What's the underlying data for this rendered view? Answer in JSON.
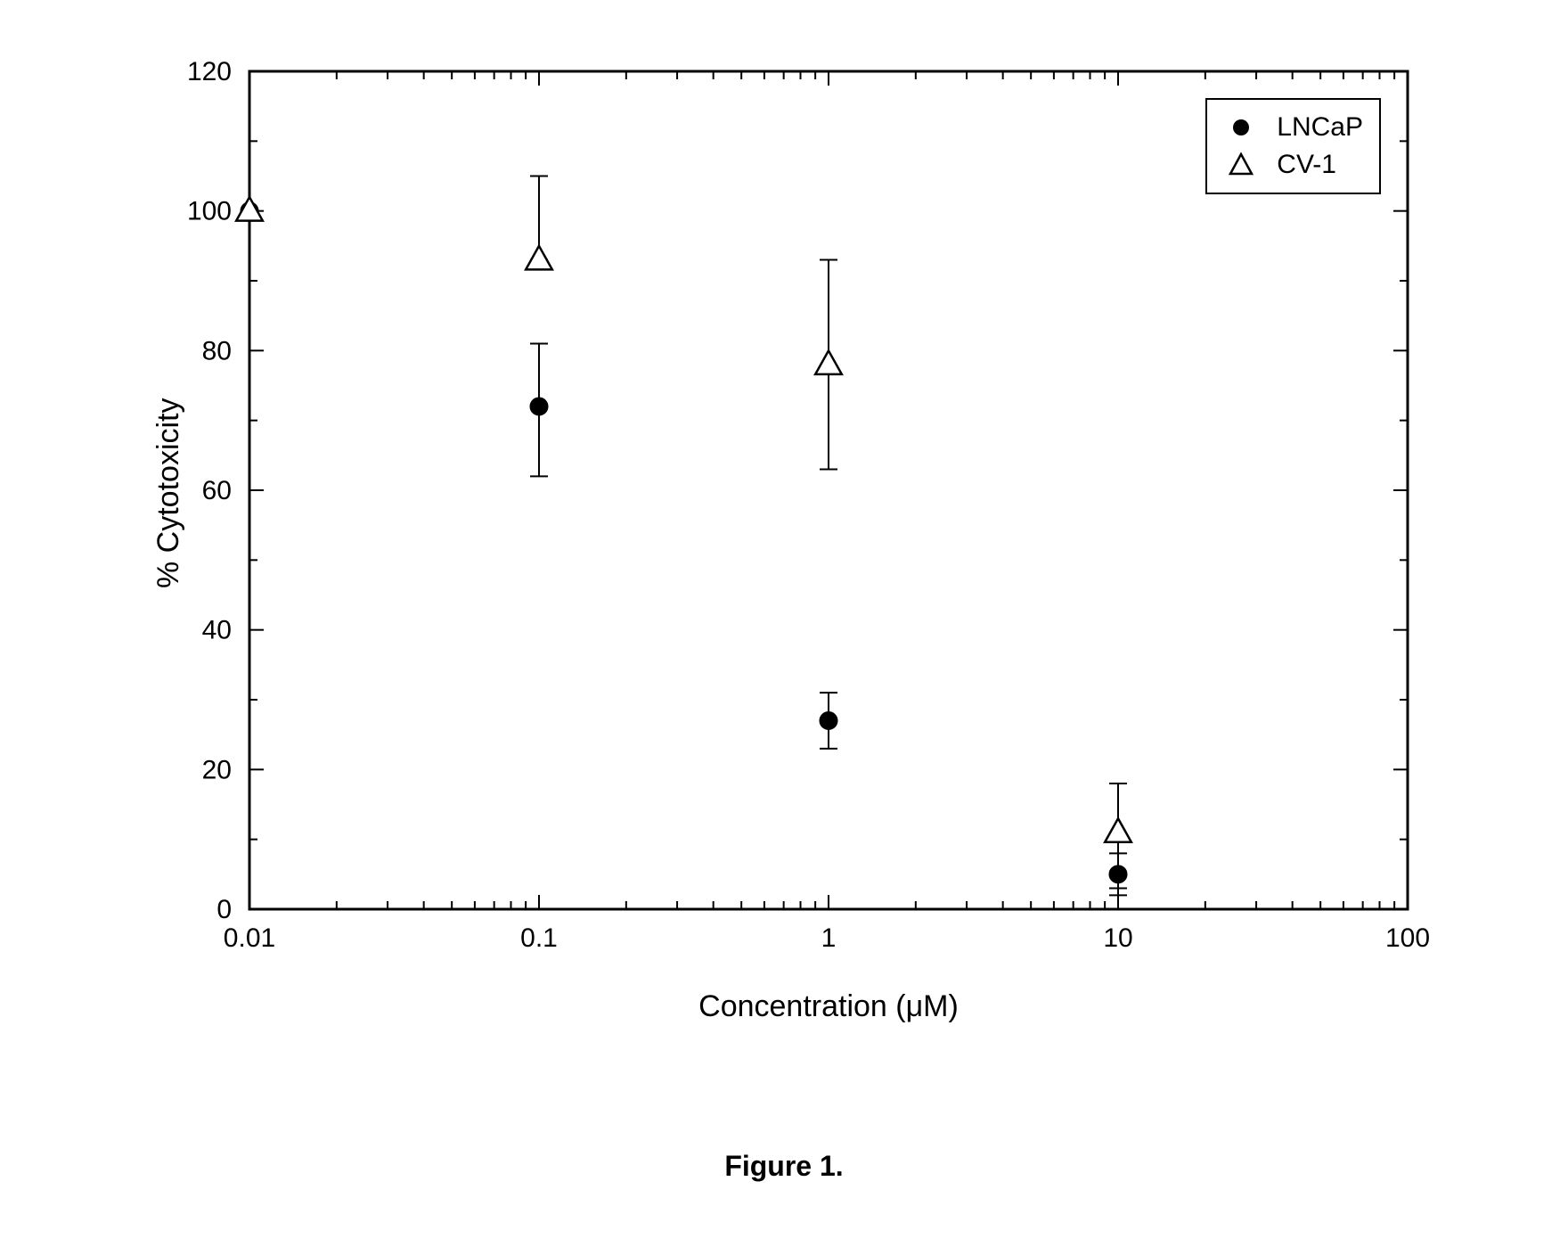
{
  "chart": {
    "type": "scatter",
    "x_scale": "log",
    "xlim": [
      0.01,
      100
    ],
    "ylim": [
      0,
      120
    ],
    "background_color": "#ffffff",
    "axis_color": "#000000",
    "axis_linewidth": 3,
    "tick_length_major": 16,
    "tick_length_minor": 9,
    "tick_linewidth": 2,
    "label_fontsize": 34,
    "tick_fontsize": 30,
    "caption_fontsize": 32,
    "y_ticks": [
      0,
      20,
      40,
      60,
      80,
      100,
      120
    ],
    "y_minor_step": 10,
    "x_ticks": [
      0.01,
      0.1,
      1,
      10,
      100
    ],
    "x_tick_labels": [
      "0.01",
      "0.1",
      "1",
      "10",
      "100"
    ],
    "y_label": "% Cytotoxicity",
    "x_label": "Concentration (μM)",
    "caption": "Figure 1.",
    "legend": {
      "position": "top-right",
      "border_color": "#000000",
      "border_width": 2,
      "items": [
        {
          "label": "LNCaP",
          "series": "lncap"
        },
        {
          "label": "CV-1",
          "series": "cv1"
        }
      ]
    },
    "series": {
      "lncap": {
        "marker": "circle-filled",
        "marker_size": 10,
        "color": "#000000",
        "errorbar_color": "#000000",
        "errorbar_width": 2,
        "errorbar_cap": 10,
        "points": [
          {
            "x": 0.01,
            "y": 100,
            "err_lo": 0,
            "err_hi": 0
          },
          {
            "x": 0.1,
            "y": 72,
            "err_lo": 10,
            "err_hi": 9
          },
          {
            "x": 1,
            "y": 27,
            "err_lo": 4,
            "err_hi": 4
          },
          {
            "x": 10,
            "y": 5,
            "err_lo": 3,
            "err_hi": 3
          }
        ]
      },
      "cv1": {
        "marker": "triangle-open",
        "marker_size": 12,
        "color": "#000000",
        "errorbar_color": "#000000",
        "errorbar_width": 2,
        "errorbar_cap": 10,
        "points": [
          {
            "x": 0.01,
            "y": 100,
            "err_lo": 0,
            "err_hi": 0
          },
          {
            "x": 0.1,
            "y": 93,
            "err_lo": 0,
            "err_hi": 12
          },
          {
            "x": 1,
            "y": 78,
            "err_lo": 15,
            "err_hi": 15
          },
          {
            "x": 10,
            "y": 11,
            "err_lo": 8,
            "err_hi": 7
          }
        ]
      }
    }
  }
}
